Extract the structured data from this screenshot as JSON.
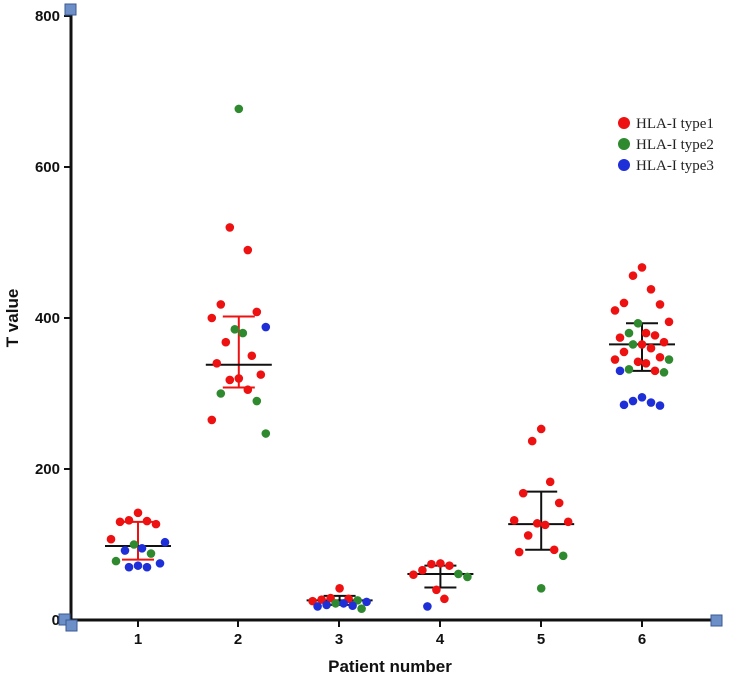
{
  "chart_data": {
    "type": "scatter",
    "title": "",
    "xlabel": "Patient number",
    "ylabel": "T value",
    "ylim": [
      0,
      800
    ],
    "y_ticks": [
      "0",
      "200",
      "400",
      "600",
      "800"
    ],
    "categories": [
      "1",
      "2",
      "3",
      "4",
      "5",
      "6"
    ],
    "legend_position": "top-right",
    "series": [
      {
        "name": "HLA-I type1",
        "color": "#ee1111",
        "points": [
          {
            "x": 1,
            "y": 142
          },
          {
            "x": 1,
            "y": 132
          },
          {
            "x": 1,
            "y": 131
          },
          {
            "x": 1,
            "y": 130
          },
          {
            "x": 1,
            "y": 127
          },
          {
            "x": 1,
            "y": 107
          },
          {
            "x": 2,
            "y": 520
          },
          {
            "x": 2,
            "y": 490
          },
          {
            "x": 2,
            "y": 418
          },
          {
            "x": 2,
            "y": 408
          },
          {
            "x": 2,
            "y": 400
          },
          {
            "x": 2,
            "y": 368
          },
          {
            "x": 2,
            "y": 350
          },
          {
            "x": 2,
            "y": 340
          },
          {
            "x": 2,
            "y": 325
          },
          {
            "x": 2,
            "y": 320
          },
          {
            "x": 2,
            "y": 318
          },
          {
            "x": 2,
            "y": 305
          },
          {
            "x": 2,
            "y": 265
          },
          {
            "x": 3,
            "y": 42
          },
          {
            "x": 3,
            "y": 29
          },
          {
            "x": 3,
            "y": 28
          },
          {
            "x": 3,
            "y": 27
          },
          {
            "x": 3,
            "y": 25
          },
          {
            "x": 4,
            "y": 75
          },
          {
            "x": 4,
            "y": 74
          },
          {
            "x": 4,
            "y": 72
          },
          {
            "x": 4,
            "y": 66
          },
          {
            "x": 4,
            "y": 60
          },
          {
            "x": 4,
            "y": 40
          },
          {
            "x": 4,
            "y": 28
          },
          {
            "x": 5,
            "y": 253
          },
          {
            "x": 5,
            "y": 237
          },
          {
            "x": 5,
            "y": 183
          },
          {
            "x": 5,
            "y": 168
          },
          {
            "x": 5,
            "y": 155
          },
          {
            "x": 5,
            "y": 132
          },
          {
            "x": 5,
            "y": 130
          },
          {
            "x": 5,
            "y": 128
          },
          {
            "x": 5,
            "y": 126
          },
          {
            "x": 5,
            "y": 112
          },
          {
            "x": 5,
            "y": 93
          },
          {
            "x": 5,
            "y": 90
          },
          {
            "x": 6,
            "y": 467
          },
          {
            "x": 6,
            "y": 456
          },
          {
            "x": 6,
            "y": 438
          },
          {
            "x": 6,
            "y": 420
          },
          {
            "x": 6,
            "y": 418
          },
          {
            "x": 6,
            "y": 410
          },
          {
            "x": 6,
            "y": 395
          },
          {
            "x": 6,
            "y": 380
          },
          {
            "x": 6,
            "y": 377
          },
          {
            "x": 6,
            "y": 374
          },
          {
            "x": 6,
            "y": 368
          },
          {
            "x": 6,
            "y": 365
          },
          {
            "x": 6,
            "y": 360
          },
          {
            "x": 6,
            "y": 355
          },
          {
            "x": 6,
            "y": 348
          },
          {
            "x": 6,
            "y": 345
          },
          {
            "x": 6,
            "y": 342
          },
          {
            "x": 6,
            "y": 340
          },
          {
            "x": 6,
            "y": 330
          }
        ]
      },
      {
        "name": "HLA-I type2",
        "color": "#2f8a2f",
        "points": [
          {
            "x": 1,
            "y": 100
          },
          {
            "x": 1,
            "y": 88
          },
          {
            "x": 1,
            "y": 78
          },
          {
            "x": 2,
            "y": 677
          },
          {
            "x": 2,
            "y": 385
          },
          {
            "x": 2,
            "y": 380
          },
          {
            "x": 2,
            "y": 300
          },
          {
            "x": 2,
            "y": 290
          },
          {
            "x": 2,
            "y": 247
          },
          {
            "x": 3,
            "y": 26
          },
          {
            "x": 3,
            "y": 22
          },
          {
            "x": 3,
            "y": 15
          },
          {
            "x": 4,
            "y": 61
          },
          {
            "x": 4,
            "y": 57
          },
          {
            "x": 5,
            "y": 85
          },
          {
            "x": 5,
            "y": 42
          },
          {
            "x": 6,
            "y": 393
          },
          {
            "x": 6,
            "y": 380
          },
          {
            "x": 6,
            "y": 365
          },
          {
            "x": 6,
            "y": 345
          },
          {
            "x": 6,
            "y": 332
          },
          {
            "x": 6,
            "y": 328
          }
        ]
      },
      {
        "name": "HLA-I type3",
        "color": "#1f2fd8",
        "points": [
          {
            "x": 1,
            "y": 103
          },
          {
            "x": 1,
            "y": 95
          },
          {
            "x": 1,
            "y": 92
          },
          {
            "x": 1,
            "y": 75
          },
          {
            "x": 1,
            "y": 72
          },
          {
            "x": 1,
            "y": 70
          },
          {
            "x": 1,
            "y": 70
          },
          {
            "x": 2,
            "y": 388
          },
          {
            "x": 3,
            "y": 24
          },
          {
            "x": 3,
            "y": 22
          },
          {
            "x": 3,
            "y": 20
          },
          {
            "x": 3,
            "y": 19
          },
          {
            "x": 3,
            "y": 18
          },
          {
            "x": 4,
            "y": 18
          },
          {
            "x": 6,
            "y": 330
          },
          {
            "x": 6,
            "y": 295
          },
          {
            "x": 6,
            "y": 290
          },
          {
            "x": 6,
            "y": 288
          },
          {
            "x": 6,
            "y": 285
          },
          {
            "x": 6,
            "y": 284
          }
        ]
      }
    ],
    "summary": [
      {
        "x": 1,
        "mean": 98,
        "lower": 80,
        "upper": 130,
        "color": "#ee1111"
      },
      {
        "x": 2,
        "mean": 338,
        "lower": 308,
        "upper": 402,
        "color": "#ee1111"
      },
      {
        "x": 3,
        "mean": 26,
        "lower": 20,
        "upper": 32,
        "color": "#111111"
      },
      {
        "x": 4,
        "mean": 61,
        "lower": 43,
        "upper": 72,
        "color": "#111111"
      },
      {
        "x": 5,
        "mean": 127,
        "lower": 93,
        "upper": 170,
        "color": "#111111"
      },
      {
        "x": 6,
        "mean": 365,
        "lower": 330,
        "upper": 393,
        "color": "#111111"
      }
    ]
  }
}
